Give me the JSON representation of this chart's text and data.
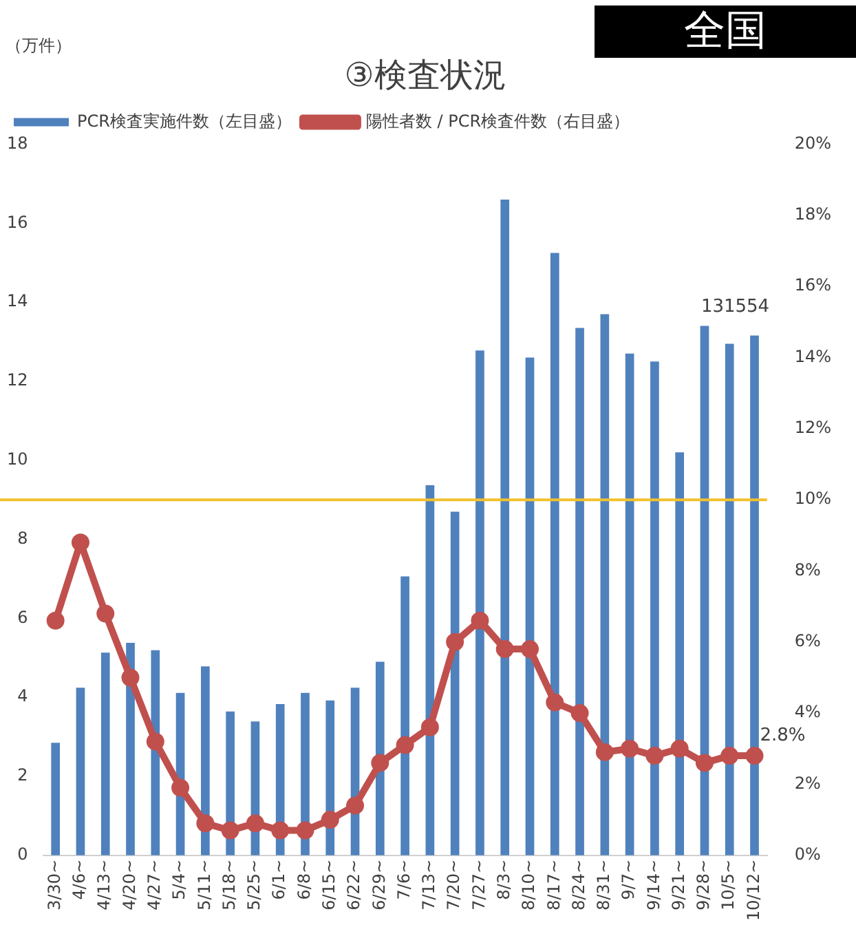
{
  "chart_data": {
    "type": "bar",
    "title": "③検査状況",
    "ylabel": "（万件）",
    "annotations": [
      "全国",
      {
        "text": "131554",
        "x": "10/12~",
        "y": 13.16
      }
    ],
    "categories": [
      "3/30~",
      "4/6~",
      "4/13~",
      "4/20~",
      "4/27~",
      "5/4~",
      "5/11~",
      "5/18~",
      "5/25~",
      "6/1~",
      "6/8~",
      "6/15~",
      "6/22~",
      "6/29~",
      "7/6~",
      "7/13~",
      "7/20~",
      "7/27~",
      "8/3~",
      "8/10~",
      "8/17~",
      "8/24~",
      "8/31~",
      "9/7~",
      "9/14~",
      "9/21~",
      "9/28~",
      "10/5~",
      "10/12~"
    ],
    "series": [
      {
        "name": "PCR検査実施件数（左目盛）",
        "color": "#4f81bd",
        "values": [
          2.85,
          4.24,
          5.13,
          5.38,
          5.19,
          4.11,
          4.78,
          3.64,
          3.39,
          3.83,
          4.11,
          3.92,
          4.24,
          4.9,
          7.06,
          9.37,
          8.7,
          12.78,
          16.6,
          12.6,
          15.25,
          13.35,
          13.7,
          12.7,
          12.5,
          10.2,
          13.4,
          12.95,
          13.16
        ]
      },
      {
        "name": "陽性者数 / PCR検査件数（右目盛）",
        "type": "line",
        "axis": "y2",
        "color": "#c0504d",
        "marker": "circle",
        "values": [
          6.6,
          8.8,
          6.8,
          5.0,
          3.2,
          1.9,
          0.9,
          0.7,
          0.9,
          0.7,
          0.7,
          1.0,
          1.4,
          2.6,
          3.1,
          3.6,
          6.0,
          6.6,
          5.8,
          5.8,
          4.3,
          4.0,
          2.9,
          3.0,
          2.8,
          3.0,
          2.6,
          2.8,
          2.8
        ],
        "value_labels": [
          null,
          null,
          null,
          null,
          null,
          null,
          null,
          null,
          null,
          null,
          null,
          null,
          null,
          null,
          null,
          null,
          null,
          null,
          null,
          null,
          null,
          null,
          null,
          null,
          null,
          null,
          null,
          null,
          "2.8%"
        ]
      }
    ],
    "ylim": [
      0,
      18
    ],
    "yticks": [
      0,
      2,
      4,
      6,
      8,
      10,
      12,
      14,
      16,
      18
    ],
    "y2lim": [
      0,
      20
    ],
    "y2ticks": [
      {
        "value": 0,
        "label": "0%"
      },
      {
        "value": 2,
        "label": "2%"
      },
      {
        "value": 4,
        "label": "4%"
      },
      {
        "value": 6,
        "label": "6%"
      },
      {
        "value": 8,
        "label": "8%"
      },
      {
        "value": 10,
        "label": "10%"
      },
      {
        "value": 12,
        "label": "12%"
      },
      {
        "value": 14,
        "label": "14%"
      },
      {
        "value": 16,
        "label": "16%"
      },
      {
        "value": 18,
        "label": "18%"
      },
      {
        "value": 20,
        "label": "20%"
      }
    ],
    "ref_lines": [
      {
        "axis": "y2",
        "value": 10,
        "color": "#f2c12e"
      }
    ],
    "legend": "top left",
    "grid": false
  }
}
